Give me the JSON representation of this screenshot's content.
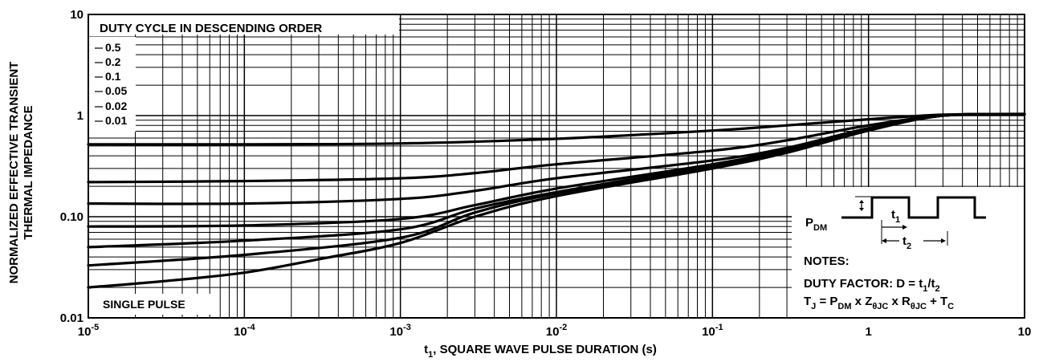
{
  "chart_data": {
    "type": "line",
    "xscale": "log",
    "yscale": "log",
    "xlim": [
      1e-05,
      10
    ],
    "ylim": [
      0.01,
      10
    ],
    "grid": true,
    "xlabel": {
      "main": "t",
      "sub": "1",
      "rest": ", SQUARE WAVE PULSE DURATION (s)"
    },
    "ylabel": [
      "NORMALIZED EFFECTIVE TRANSIENT",
      "THERMAL IMPEDANCE"
    ],
    "xticks": [
      {
        "value": 1e-05,
        "base": "10",
        "exp": "-5"
      },
      {
        "value": 0.0001,
        "base": "10",
        "exp": "-4"
      },
      {
        "value": 0.001,
        "base": "10",
        "exp": "-3"
      },
      {
        "value": 0.01,
        "base": "10",
        "exp": "-2"
      },
      {
        "value": 0.1,
        "base": "10",
        "exp": "-1"
      },
      {
        "value": 1,
        "base": "1",
        "exp": ""
      },
      {
        "value": 10,
        "base": "10",
        "exp": ""
      }
    ],
    "yticks": [
      {
        "value": 0.01,
        "label": "0.01"
      },
      {
        "value": 0.1,
        "label": "0.10"
      },
      {
        "value": 1,
        "label": "1"
      },
      {
        "value": 10,
        "label": "10"
      }
    ],
    "legend": {
      "title": "DUTY CYCLE IN DESCENDING ORDER",
      "items": [
        "0.5",
        "0.2",
        "0.1",
        "0.05",
        "0.02",
        "0.01"
      ]
    },
    "annotation": "SINGLE PULSE",
    "notes": {
      "pdm_main": "P",
      "pdm_sub": "DM",
      "t1_main": "t",
      "t1_sub": "1",
      "t2_main": "t",
      "t2_sub": "2",
      "title": "NOTES:",
      "duty_line": [
        {
          "t": "DUTY FACTOR: D = t"
        },
        {
          "t": "1",
          "sub": true
        },
        {
          "t": "/t"
        },
        {
          "t": "2",
          "sub": true
        }
      ],
      "tj_line": [
        {
          "t": "T"
        },
        {
          "t": "J",
          "sub": true
        },
        {
          "t": " = P"
        },
        {
          "t": "DM",
          "sub": true
        },
        {
          "t": " x Z"
        },
        {
          "t": "θJC",
          "sub": true
        },
        {
          "t": " x R"
        },
        {
          "t": "θJC",
          "sub": true
        },
        {
          "t": " + T"
        },
        {
          "t": "C",
          "sub": true
        }
      ]
    },
    "series": [
      {
        "name": "0.5",
        "x": [
          1e-05,
          0.0001,
          0.001,
          0.01,
          0.1,
          0.3,
          1,
          3,
          10
        ],
        "y": [
          0.52,
          0.52,
          0.53,
          0.59,
          0.71,
          0.8,
          0.92,
          1.02,
          1.04
        ]
      },
      {
        "name": "0.2",
        "x": [
          1e-05,
          0.0001,
          0.001,
          0.003,
          0.01,
          0.1,
          0.3,
          1,
          3,
          10
        ],
        "y": [
          0.22,
          0.225,
          0.24,
          0.27,
          0.33,
          0.45,
          0.57,
          0.8,
          1.0,
          1.03
        ]
      },
      {
        "name": "0.1",
        "x": [
          1e-05,
          0.0001,
          0.001,
          0.003,
          0.01,
          0.1,
          0.3,
          1,
          3,
          10
        ],
        "y": [
          0.135,
          0.135,
          0.15,
          0.18,
          0.24,
          0.36,
          0.48,
          0.75,
          1.0,
          1.03
        ]
      },
      {
        "name": "0.05",
        "x": [
          1e-05,
          0.0001,
          0.001,
          0.003,
          0.01,
          0.1,
          0.3,
          1,
          3,
          10
        ],
        "y": [
          0.08,
          0.082,
          0.095,
          0.13,
          0.19,
          0.33,
          0.46,
          0.74,
          1.0,
          1.03
        ]
      },
      {
        "name": "0.02",
        "x": [
          1e-05,
          0.0001,
          0.001,
          0.003,
          0.01,
          0.1,
          0.3,
          1,
          3,
          10
        ],
        "y": [
          0.05,
          0.058,
          0.075,
          0.12,
          0.175,
          0.32,
          0.45,
          0.73,
          1.0,
          1.03
        ]
      },
      {
        "name": "0.01",
        "x": [
          1e-05,
          0.0001,
          0.001,
          0.003,
          0.01,
          0.1,
          0.3,
          1,
          3,
          10
        ],
        "y": [
          0.033,
          0.042,
          0.062,
          0.11,
          0.17,
          0.31,
          0.44,
          0.72,
          1.0,
          1.03
        ]
      },
      {
        "name": "SINGLE PULSE",
        "x": [
          1e-05,
          3e-05,
          0.0001,
          0.0003,
          0.001,
          0.003,
          0.01,
          0.1,
          0.3,
          1,
          3,
          10
        ],
        "y": [
          0.02,
          0.023,
          0.028,
          0.038,
          0.055,
          0.1,
          0.16,
          0.3,
          0.43,
          0.71,
          1.0,
          1.03
        ]
      }
    ]
  }
}
